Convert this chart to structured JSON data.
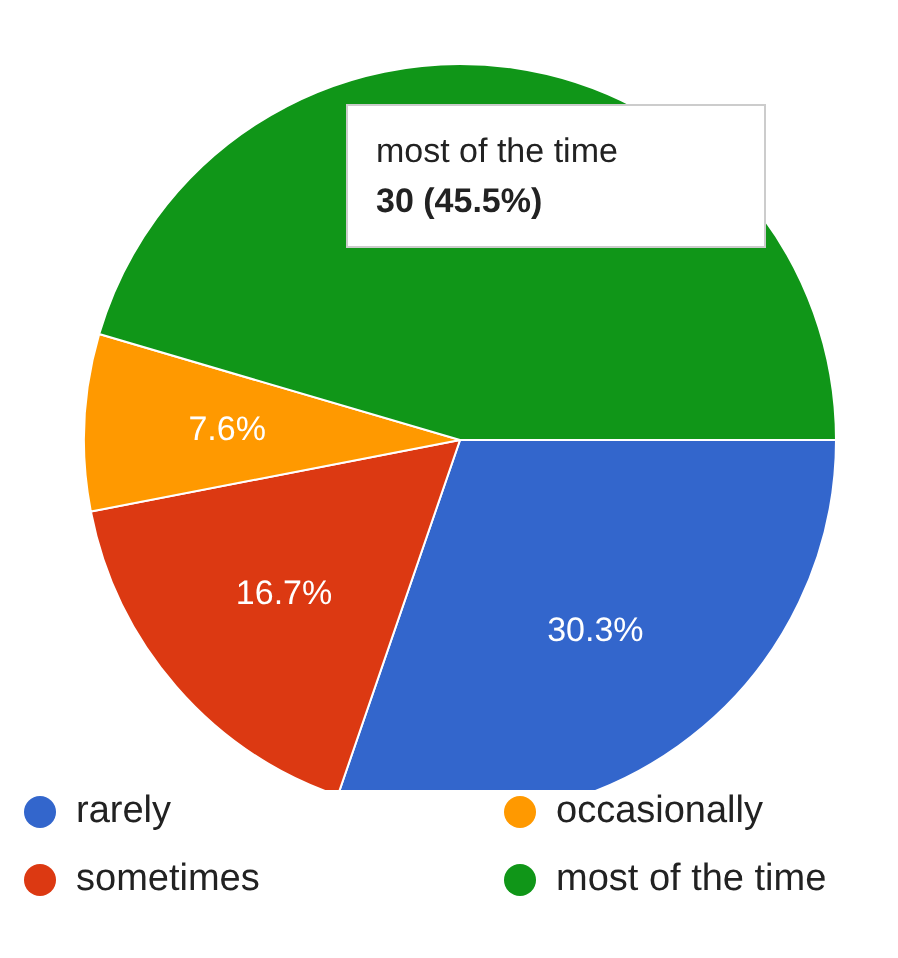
{
  "chart_data": {
    "type": "pie",
    "categories": [
      "rarely",
      "sometimes",
      "occasionally",
      "most of the time"
    ],
    "values": [
      30.3,
      16.7,
      7.6,
      45.5
    ],
    "colors": [
      "#3366cc",
      "#dc3912",
      "#ff9900",
      "#109618"
    ],
    "value_labels": [
      "30.3%",
      "16.7%",
      "7.6%",
      null
    ],
    "annotations": [
      "most of the time\n30 (45.5%)"
    ],
    "legend": "bottom"
  }
}
